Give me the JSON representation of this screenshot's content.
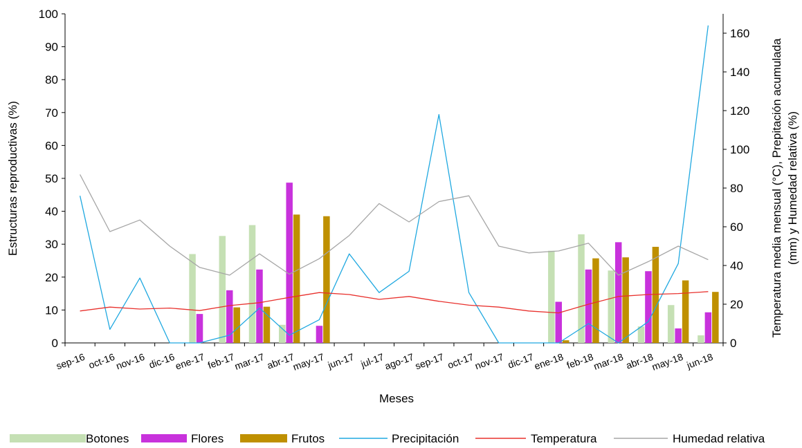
{
  "chart_data": {
    "type": "bar",
    "categories": [
      "sep-16",
      "oct-16",
      "nov-16",
      "dic-16",
      "ene-17",
      "feb-17",
      "mar-17",
      "abr-17",
      "may-17",
      "jun-17",
      "jul-17",
      "ago-17",
      "sep-17",
      "oct-17",
      "nov-17",
      "dic-17",
      "ene-18",
      "feb-18",
      "mar-18",
      "abr-18",
      "may-18",
      "jun-18"
    ],
    "xlabel": "Meses",
    "ylabel": "Estructuras reproductivas (%)",
    "y2label_line1": "Temperatura media mensual (°C), Prepitación acumulada",
    "y2label_line2": "(mm) y Humedad relativa (%)",
    "ylim": [
      0,
      100
    ],
    "y2lim": [
      0,
      170
    ],
    "yticks": [
      "0",
      "10",
      "20",
      "30",
      "40",
      "50",
      "60",
      "70",
      "80",
      "90",
      "100"
    ],
    "y2ticks": [
      "0",
      "20",
      "40",
      "60",
      "80",
      "100",
      "120",
      "140",
      "160"
    ],
    "series": [
      {
        "name": "Botones",
        "kind": "bar",
        "axis": "left",
        "color": "#c5e0b4",
        "values": [
          0,
          0,
          0,
          0,
          27,
          32.5,
          35.8,
          5.5,
          0,
          0,
          0,
          0,
          0,
          0,
          0,
          0,
          28,
          33,
          22,
          5,
          11.5,
          2.3
        ]
      },
      {
        "name": "Flores",
        "kind": "bar",
        "axis": "left",
        "color": "#c832dc",
        "values": [
          0,
          0,
          0,
          0,
          8.8,
          16,
          22.3,
          48.7,
          5.2,
          0,
          0,
          0,
          0,
          0,
          0,
          0,
          12.5,
          22.3,
          30.6,
          21.8,
          4.4,
          9.3
        ]
      },
      {
        "name": "Frutos",
        "kind": "bar",
        "axis": "left",
        "color": "#bf9000",
        "values": [
          0,
          0,
          0,
          0,
          0,
          10.8,
          11,
          39,
          38.5,
          0,
          0,
          0,
          0,
          0,
          0,
          0,
          0.8,
          25.7,
          26,
          29.2,
          19,
          15.5
        ]
      },
      {
        "name": "Precipitación",
        "kind": "line",
        "axis": "right",
        "color": "#1fa8e0",
        "values": [
          76,
          7,
          33.5,
          0,
          0,
          4,
          18,
          4,
          12,
          46,
          26,
          37,
          118,
          26,
          0,
          0,
          0,
          10,
          0,
          11,
          41,
          164
        ]
      },
      {
        "name": "Temperatura",
        "kind": "line",
        "axis": "right",
        "color": "#e8302c",
        "values": [
          16.5,
          18.5,
          17.5,
          18,
          16.7,
          19.3,
          20.8,
          23.5,
          26,
          25,
          22.5,
          24,
          21.5,
          19.5,
          18.5,
          16.5,
          15.5,
          20,
          24,
          25,
          25.5,
          26.5
        ]
      },
      {
        "name": "Humedad relativa",
        "kind": "line",
        "axis": "right",
        "color": "#a6a6a6",
        "values": [
          87,
          57.5,
          63.5,
          50,
          39,
          35,
          46,
          35.5,
          43.5,
          55.5,
          72,
          62.5,
          73,
          76,
          50,
          46.5,
          47.5,
          51.5,
          35,
          42,
          50,
          43
        ]
      }
    ],
    "legend_position": "bottom",
    "grid": false
  }
}
